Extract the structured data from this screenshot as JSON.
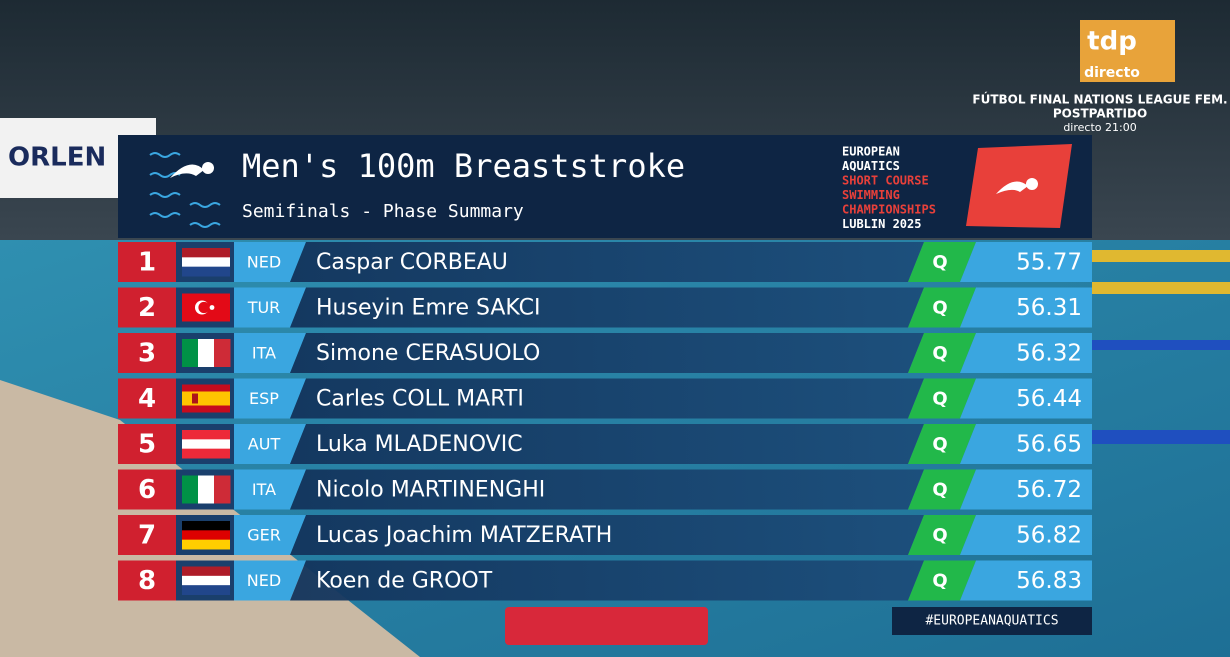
{
  "broadcaster": {
    "logo": "tdp",
    "live": "directo",
    "next_program": "FÚTBOL FINAL NATIONS LEAGUE FEM.",
    "next_subtitle": "POSTPARTIDO",
    "next_time": "directo 21:00"
  },
  "venue_banner": "ORLEN",
  "header": {
    "title": "Men's 100m Breaststroke",
    "subtitle": "Semifinals - Phase Summary",
    "event_logo": [
      "EUROPEAN",
      "AQUATICS",
      "SHORT COURSE",
      "SWIMMING",
      "CHAMPIONSHIPS",
      "LUBLIN 2025"
    ]
  },
  "results": [
    {
      "rank": "1",
      "country": "NED",
      "name": "Caspar CORBEAU",
      "qualified": "Q",
      "time": "55.77"
    },
    {
      "rank": "2",
      "country": "TUR",
      "name": "Huseyin Emre SAKCI",
      "qualified": "Q",
      "time": "56.31"
    },
    {
      "rank": "3",
      "country": "ITA",
      "name": "Simone CERASUOLO",
      "qualified": "Q",
      "time": "56.32"
    },
    {
      "rank": "4",
      "country": "ESP",
      "name": "Carles COLL MARTI",
      "qualified": "Q",
      "time": "56.44"
    },
    {
      "rank": "5",
      "country": "AUT",
      "name": "Luka MLADENOVIC",
      "qualified": "Q",
      "time": "56.65"
    },
    {
      "rank": "6",
      "country": "ITA",
      "name": "Nicolo MARTINENGHI",
      "qualified": "Q",
      "time": "56.72"
    },
    {
      "rank": "7",
      "country": "GER",
      "name": "Lucas Joachim MATZERATH",
      "qualified": "Q",
      "time": "56.82"
    },
    {
      "rank": "8",
      "country": "NED",
      "name": "Koen de GROOT",
      "qualified": "Q",
      "time": "56.83"
    }
  ],
  "footer": {
    "hashtag": "#EUROPEANAQUATICS"
  }
}
